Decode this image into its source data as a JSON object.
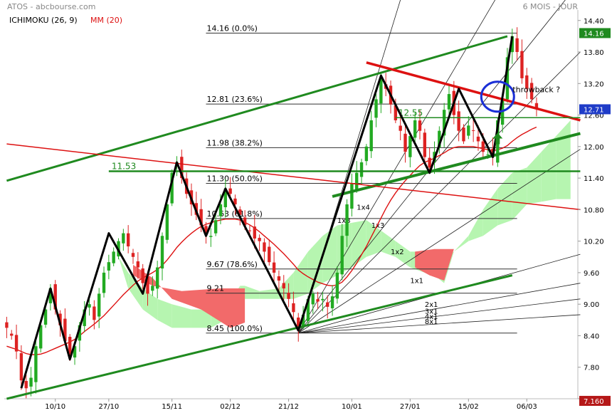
{
  "header": {
    "ticker": "ATOS - abcbourse.com",
    "period": "6 MOIS - JOUR",
    "indicator1": "ICHIMOKU (26, 9)",
    "indicator2": "MM (20)"
  },
  "colors": {
    "up": "#22aa22",
    "down": "#dd2222",
    "cloud_bull": "#b6f5b0",
    "cloud_bear": "#f26a6a",
    "ma": "#dd1111",
    "trend_green": "#1f8a1f",
    "trend_red": "#dd1111",
    "zigzag": "#000000",
    "circle": "#1a2fd6",
    "last_price_bg": "#1f3cc8",
    "low_price_bg": "#b51818",
    "high_price_bg": "#1f8a1f"
  },
  "chart_data": {
    "type": "candlestick",
    "ylim": [
      7.2,
      14.6
    ],
    "y_ticks": [
      "14.40",
      "13.80",
      "13.20",
      "12.60",
      "12.00",
      "11.40",
      "10.80",
      "10.20",
      "9.60",
      "9.00",
      "8.40",
      "7.80",
      "7.20"
    ],
    "x_ticks": [
      {
        "label": "10/10",
        "i": 10
      },
      {
        "label": "27/10",
        "i": 21
      },
      {
        "label": "15/11",
        "i": 34
      },
      {
        "label": "02/12",
        "i": 46
      },
      {
        "label": "21/12",
        "i": 58
      },
      {
        "label": "10/01",
        "i": 71
      },
      {
        "label": "27/01",
        "i": 83
      },
      {
        "label": "15/02",
        "i": 95
      },
      {
        "label": "06/03",
        "i": 107
      }
    ],
    "n_slots": 118,
    "closes": [
      8.55,
      8.4,
      8.1,
      7.55,
      7.4,
      7.6,
      8.2,
      8.6,
      8.9,
      9.3,
      8.9,
      8.6,
      8.3,
      8.0,
      8.2,
      8.6,
      8.9,
      9.0,
      8.7,
      9.2,
      9.6,
      9.8,
      10.0,
      10.2,
      10.35,
      10.1,
      9.9,
      9.7,
      9.4,
      9.2,
      9.35,
      9.7,
      10.3,
      10.9,
      11.5,
      11.7,
      11.4,
      11.1,
      10.9,
      10.7,
      10.5,
      10.35,
      10.3,
      10.6,
      10.9,
      11.2,
      11.1,
      10.9,
      10.7,
      10.5,
      10.4,
      10.25,
      10.2,
      10.0,
      9.8,
      9.6,
      9.45,
      9.3,
      9.1,
      8.85,
      8.5,
      8.8,
      9.1,
      9.2,
      9.05,
      9.1,
      8.95,
      9.15,
      9.6,
      10.3,
      10.9,
      11.3,
      11.5,
      11.7,
      12.0,
      12.5,
      12.9,
      13.3,
      13.1,
      12.8,
      12.5,
      12.3,
      11.9,
      12.2,
      12.5,
      12.3,
      11.8,
      11.6,
      11.9,
      12.3,
      12.7,
      13.0,
      12.6,
      12.3,
      12.1,
      12.4,
      12.3,
      12.1,
      11.9,
      11.85,
      11.8,
      12.5,
      12.9,
      13.7,
      14.1,
      13.8,
      13.3,
      13.1,
      12.9,
      12.71
    ],
    "ma20": [
      8.2,
      8.17,
      8.14,
      8.1,
      8.06,
      8.04,
      8.04,
      8.05,
      8.08,
      8.12,
      8.16,
      8.2,
      8.24,
      8.28,
      8.33,
      8.4,
      8.48,
      8.55,
      8.62,
      8.7,
      8.78,
      8.88,
      8.98,
      9.08,
      9.18,
      9.27,
      9.36,
      9.44,
      9.5,
      9.55,
      9.6,
      9.66,
      9.74,
      9.84,
      9.96,
      10.08,
      10.18,
      10.27,
      10.35,
      10.42,
      10.48,
      10.52,
      10.55,
      10.58,
      10.6,
      10.62,
      10.62,
      10.62,
      10.6,
      10.56,
      10.51,
      10.45,
      10.38,
      10.3,
      10.22,
      10.14,
      10.05,
      9.96,
      9.86,
      9.76,
      9.65,
      9.58,
      9.52,
      9.47,
      9.42,
      9.39,
      9.36,
      9.35,
      9.37,
      9.42,
      9.52,
      9.64,
      9.78,
      9.94,
      10.1,
      10.28,
      10.46,
      10.64,
      10.82,
      10.98,
      11.12,
      11.24,
      11.35,
      11.45,
      11.55,
      11.64,
      11.7,
      11.74,
      11.78,
      11.83,
      11.88,
      11.94,
      11.98,
      12.0,
      12.0,
      12.0,
      12.0,
      11.98,
      11.96,
      11.94,
      11.92,
      11.94,
      11.97,
      12.02,
      12.1,
      12.17,
      12.23,
      12.28,
      12.33,
      12.37
    ],
    "cloud": [
      {
        "i": 23,
        "a": 9.9,
        "b": 9.9
      },
      {
        "i": 25,
        "a": 9.6,
        "b": 9.3
      },
      {
        "i": 28,
        "a": 9.3,
        "b": 8.9
      },
      {
        "i": 31,
        "a": 9.1,
        "b": 8.7
      },
      {
        "i": 34,
        "a": 9.0,
        "b": 8.55
      },
      {
        "i": 38,
        "a": 8.9,
        "b": 8.55
      },
      {
        "i": 42,
        "a": 8.9,
        "b": 8.55
      },
      {
        "i": 45,
        "a": 9.0,
        "b": 8.7
      },
      {
        "i": 47,
        "a": 9.2,
        "b": 8.8
      },
      {
        "i": 48,
        "a": 9.35,
        "b": 8.9
      },
      {
        "i": 49,
        "a": 9.35,
        "b": 9.1
      },
      {
        "i": 52,
        "a": 9.25,
        "b": 9.1
      },
      {
        "i": 56,
        "a": 9.3,
        "b": 9.1
      },
      {
        "i": 59,
        "a": 9.6,
        "b": 9.1
      },
      {
        "i": 62,
        "a": 10.0,
        "b": 9.2
      },
      {
        "i": 65,
        "a": 10.3,
        "b": 9.4
      },
      {
        "i": 68,
        "a": 10.5,
        "b": 9.55
      },
      {
        "i": 71,
        "a": 10.55,
        "b": 9.7
      },
      {
        "i": 74,
        "a": 10.6,
        "b": 9.9
      },
      {
        "i": 77,
        "a": 10.4,
        "b": 10.0
      },
      {
        "i": 80,
        "a": 10.2,
        "b": 9.9
      },
      {
        "i": 83,
        "a": 10.0,
        "b": 9.7
      },
      {
        "i": 86,
        "a": 10.0,
        "b": 9.6
      },
      {
        "i": 88,
        "a": 10.05,
        "b": 9.55
      },
      {
        "i": 90,
        "a": 9.9,
        "b": 9.4
      },
      {
        "i": 92,
        "a": 10.0,
        "b": 10.0
      },
      {
        "i": 95,
        "a": 10.3,
        "b": 10.2
      },
      {
        "i": 98,
        "a": 10.8,
        "b": 10.3
      },
      {
        "i": 101,
        "a": 11.2,
        "b": 10.5
      },
      {
        "i": 104,
        "a": 11.5,
        "b": 10.6
      },
      {
        "i": 107,
        "a": 11.6,
        "b": 10.9
      },
      {
        "i": 110,
        "a": 11.9,
        "b": 10.95
      },
      {
        "i": 113,
        "a": 12.2,
        "b": 11.0
      },
      {
        "i": 116,
        "a": 12.5,
        "b": 11.0
      }
    ],
    "zigzag": [
      [
        3,
        7.4
      ],
      [
        9,
        9.3
      ],
      [
        13,
        7.95
      ],
      [
        21,
        10.35
      ],
      [
        28,
        9.2
      ],
      [
        35,
        11.7
      ],
      [
        41,
        10.3
      ],
      [
        45,
        11.2
      ],
      [
        60,
        8.5
      ],
      [
        77,
        13.35
      ],
      [
        87,
        11.5
      ],
      [
        93,
        13.1
      ],
      [
        100,
        11.8
      ],
      [
        104,
        14.1
      ]
    ],
    "fib_levels": [
      {
        "label": "14.16 (0.0%)",
        "v": 14.16
      },
      {
        "label": "12.81 (23.6%)",
        "v": 12.81
      },
      {
        "label": "11.98 (38.2%)",
        "v": 11.98
      },
      {
        "label": "11.30 (50.0%)",
        "v": 11.3
      },
      {
        "label": "10.63 (61.8%)",
        "v": 10.63
      },
      {
        "label": "9.67 (78.6%)",
        "v": 9.67
      },
      {
        "label": "9.21",
        "v": 9.21
      },
      {
        "label": "8.45 (100.0%)",
        "v": 8.45
      }
    ],
    "gann_fan": {
      "origin": [
        60,
        8.45
      ],
      "lines": [
        {
          "label": "1x8",
          "to": [
            85,
            16.0
          ]
        },
        {
          "label": "1x4",
          "to": [
            105,
            15.5
          ]
        },
        {
          "label": "1x3",
          "to": [
            115,
            14.8
          ]
        },
        {
          "label": "1x2",
          "to": [
            118,
            13.8
          ]
        },
        {
          "label": "1x1",
          "to": [
            118,
            11.95
          ]
        },
        {
          "label": "2x1",
          "to": [
            118,
            9.95
          ]
        },
        {
          "label": "3x1",
          "to": [
            118,
            9.4
          ]
        },
        {
          "label": "4x1",
          "to": [
            118,
            9.1
          ]
        },
        {
          "label": "8x1",
          "to": [
            118,
            8.8
          ]
        }
      ]
    },
    "trendlines": [
      {
        "color": "green",
        "from": [
          0,
          11.35
        ],
        "to": [
          103,
          14.1
        ],
        "w": 3
      },
      {
        "color": "green",
        "from": [
          0,
          7.2
        ],
        "to": [
          104,
          9.55
        ],
        "w": 3
      },
      {
        "color": "green",
        "from": [
          67,
          11.05
        ],
        "to": [
          118,
          12.25
        ],
        "w": 4
      },
      {
        "color": "red",
        "from": [
          0,
          12.05
        ],
        "to": [
          118,
          10.8
        ],
        "w": 1.5
      },
      {
        "color": "red",
        "from": [
          74,
          13.6
        ],
        "to": [
          118,
          12.5
        ],
        "w": 3.5
      }
    ],
    "horizontal_lines": [
      {
        "label": "11.53",
        "v": 11.53,
        "from": 21,
        "to": 118,
        "color": "green"
      },
      {
        "label": "12.55",
        "v": 12.55,
        "from": 80,
        "to": 118,
        "color": "green"
      }
    ],
    "annotations": {
      "throwback_label": "throwback ?",
      "circle_center": [
        101,
        12.95
      ],
      "arrow_at": [
        101,
        12.1
      ]
    },
    "price_labels": {
      "high": "14.16",
      "last": "12.71",
      "low": "7.160"
    }
  }
}
